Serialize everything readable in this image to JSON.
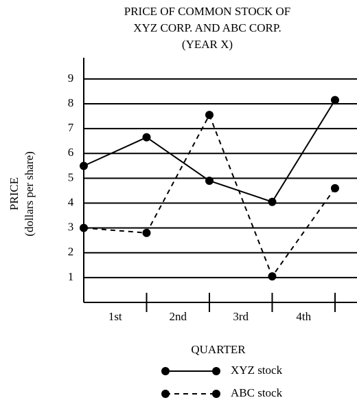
{
  "chart_data": {
    "type": "line",
    "title": [
      "PRICE OF COMMON STOCK OF",
      "XYZ CORP. AND ABC CORP.",
      "(YEAR X)"
    ],
    "y_label": [
      "PRICE",
      "(dollars per share)"
    ],
    "x_label": "QUARTER",
    "categories": [
      "1st",
      "2nd",
      "3rd",
      "4th"
    ],
    "x": [
      0,
      1,
      2,
      3,
      4
    ],
    "xlim": [
      0,
      4.35
    ],
    "xticks": [
      1,
      2,
      3,
      4
    ],
    "ylim": [
      0,
      9.8
    ],
    "yticks": [
      1,
      2,
      3,
      4,
      5,
      6,
      7,
      8,
      9
    ],
    "grid": true,
    "series": [
      {
        "name": "XYZ stock",
        "color": "#000000",
        "line_style": "solid",
        "values": [
          5.5,
          6.65,
          4.9,
          4.05,
          8.15
        ]
      },
      {
        "name": "ABC stock",
        "color": "#000000",
        "line_style": "dashed",
        "values": [
          3.0,
          2.8,
          7.55,
          1.05,
          4.6
        ]
      }
    ]
  }
}
